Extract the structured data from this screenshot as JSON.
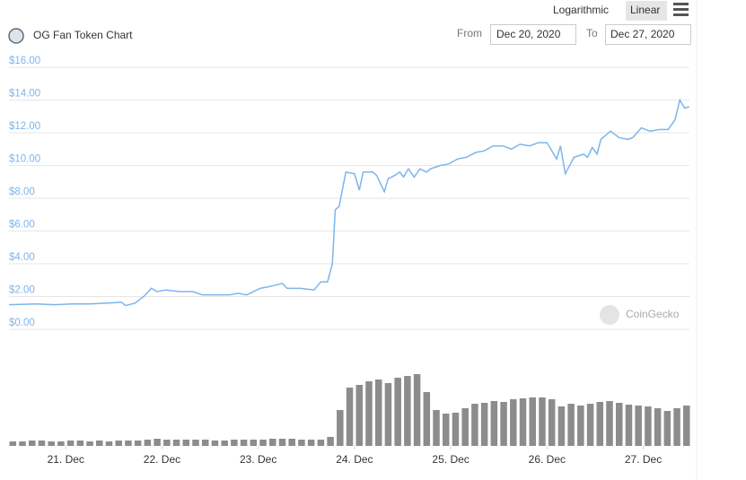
{
  "controls": {
    "scale_options": [
      "Logarithmic",
      "Linear"
    ],
    "from_label": "From",
    "from_date": "Dec 20, 2020",
    "to_label": "To",
    "to_date": "Dec 27, 2020"
  },
  "watermark": "CoinGecko",
  "chart_data": [
    {
      "type": "line",
      "title": "OG Fan Token Chart",
      "color": "#7cb5ec",
      "grid": true,
      "log_scale": false,
      "x": [
        20.41,
        20.69,
        20.88,
        21.07,
        21.25,
        21.44,
        21.58,
        21.62,
        21.72,
        21.81,
        21.89,
        21.95,
        22.04,
        22.18,
        22.32,
        22.42,
        22.56,
        22.7,
        22.79,
        22.88,
        23.02,
        23.11,
        23.25,
        23.3,
        23.44,
        23.58,
        23.65,
        23.72,
        23.77,
        23.8,
        23.84,
        23.91,
        24.0,
        24.05,
        24.09,
        24.19,
        24.23,
        24.31,
        24.35,
        24.42,
        24.47,
        24.51,
        24.56,
        24.62,
        24.68,
        24.75,
        24.79,
        24.89,
        24.98,
        25.07,
        25.16,
        25.26,
        25.35,
        25.44,
        25.54,
        25.63,
        25.72,
        25.82,
        25.91,
        26.0,
        26.1,
        26.14,
        26.19,
        26.28,
        26.38,
        26.42,
        26.47,
        26.52,
        26.56,
        26.66,
        26.75,
        26.84,
        26.89,
        26.98,
        27.07,
        27.17,
        27.26,
        27.33,
        27.38,
        27.43,
        27.48
      ],
      "values": [
        1.5,
        1.55,
        1.5,
        1.55,
        1.55,
        1.6,
        1.65,
        1.45,
        1.6,
        2.0,
        2.5,
        2.3,
        2.4,
        2.3,
        2.3,
        2.1,
        2.1,
        2.1,
        2.2,
        2.1,
        2.5,
        2.6,
        2.8,
        2.5,
        2.5,
        2.4,
        2.9,
        2.9,
        4.0,
        7.3,
        7.5,
        9.6,
        9.5,
        8.5,
        9.6,
        9.6,
        9.4,
        8.4,
        9.2,
        9.4,
        9.6,
        9.3,
        9.8,
        9.3,
        9.8,
        9.6,
        9.8,
        10.0,
        10.1,
        10.4,
        10.5,
        10.8,
        10.9,
        11.2,
        11.2,
        11.0,
        11.3,
        11.2,
        11.4,
        11.4,
        10.4,
        11.2,
        9.5,
        10.5,
        10.7,
        10.5,
        11.1,
        10.7,
        11.6,
        12.1,
        11.7,
        11.6,
        11.7,
        12.3,
        12.1,
        12.2,
        12.2,
        12.8,
        14.0,
        13.5,
        13.6
      ],
      "xlim": [
        20.41,
        27.48
      ],
      "xticks": [
        {
          "value": 21,
          "label": "21. Dec"
        },
        {
          "value": 22,
          "label": "22. Dec"
        },
        {
          "value": 23,
          "label": "23. Dec"
        },
        {
          "value": 24,
          "label": "24. Dec"
        },
        {
          "value": 25,
          "label": "25. Dec"
        },
        {
          "value": 26,
          "label": "26. Dec"
        },
        {
          "value": 27,
          "label": "27. Dec"
        }
      ],
      "ylim": [
        0,
        16
      ],
      "yticks": [
        {
          "value": 0,
          "label": "$0.00"
        },
        {
          "value": 2,
          "label": "$2.00"
        },
        {
          "value": 4,
          "label": "$4.00"
        },
        {
          "value": 6,
          "label": "$6.00"
        },
        {
          "value": 8,
          "label": "$8.00"
        },
        {
          "value": 10,
          "label": "$10.00"
        },
        {
          "value": 12,
          "label": "$12.00"
        },
        {
          "value": 14,
          "label": "$14.00"
        },
        {
          "value": 16,
          "label": "$16.00"
        }
      ]
    },
    {
      "type": "bar",
      "color": "#8c8c8c",
      "xlim": [
        20.41,
        27.48
      ],
      "ylim": [
        0,
        100
      ],
      "x": [
        20.45,
        20.55,
        20.65,
        20.75,
        20.85,
        20.95,
        21.05,
        21.15,
        21.25,
        21.35,
        21.45,
        21.55,
        21.65,
        21.75,
        21.85,
        21.95,
        22.05,
        22.15,
        22.25,
        22.35,
        22.45,
        22.55,
        22.65,
        22.75,
        22.85,
        22.95,
        23.05,
        23.15,
        23.25,
        23.35,
        23.45,
        23.55,
        23.65,
        23.75,
        23.85,
        23.95,
        24.05,
        24.15,
        24.25,
        24.35,
        24.45,
        24.55,
        24.65,
        24.75,
        24.85,
        24.95,
        25.05,
        25.15,
        25.25,
        25.35,
        25.45,
        25.55,
        25.65,
        25.75,
        25.85,
        25.95,
        26.05,
        26.15,
        26.25,
        26.35,
        26.45,
        26.55,
        26.65,
        26.75,
        26.85,
        26.95,
        27.05,
        27.15,
        27.25,
        27.35,
        27.45
      ],
      "values": [
        5,
        5,
        6,
        6,
        5,
        5,
        6,
        6,
        5,
        6,
        5,
        6,
        6,
        6,
        7,
        8,
        7,
        7,
        7,
        7,
        7,
        6,
        6,
        7,
        7,
        7,
        7,
        8,
        8,
        8,
        7,
        7,
        7,
        10,
        40,
        65,
        68,
        72,
        74,
        70,
        76,
        78,
        80,
        60,
        40,
        36,
        37,
        42,
        47,
        48,
        50,
        49,
        52,
        53,
        54,
        54,
        52,
        44,
        47,
        45,
        47,
        49,
        50,
        48,
        46,
        45,
        44,
        42,
        39,
        42,
        45
      ]
    }
  ]
}
